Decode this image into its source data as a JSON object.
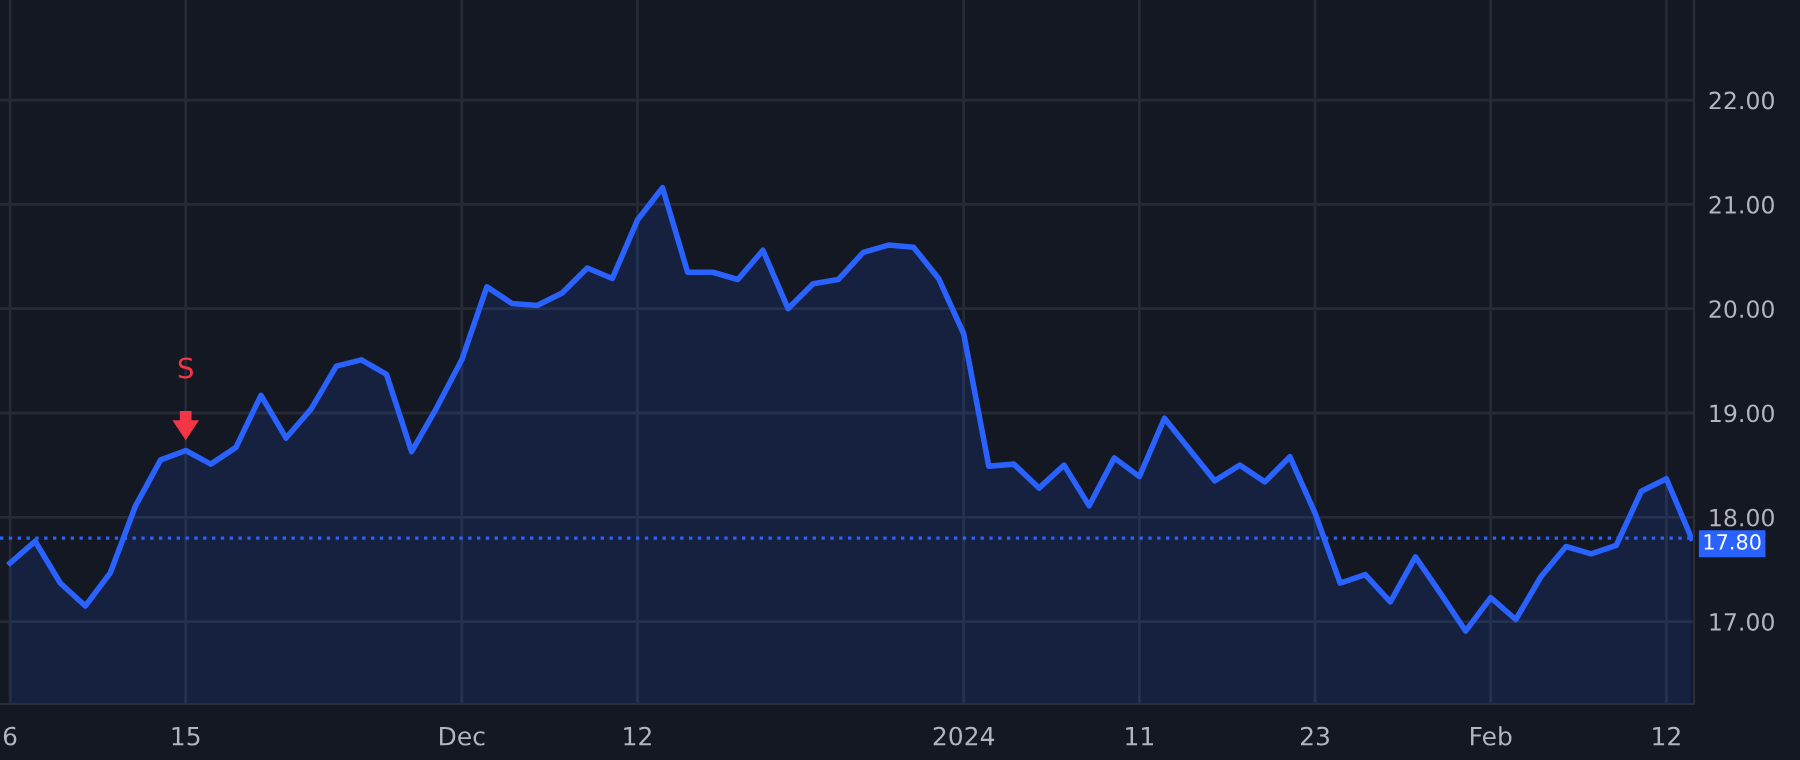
{
  "chart_data": {
    "type": "area",
    "categories": [
      "6",
      null,
      null,
      null,
      null,
      null,
      null,
      "15",
      null,
      null,
      null,
      null,
      null,
      null,
      null,
      null,
      null,
      null,
      "Dec",
      null,
      null,
      null,
      null,
      null,
      null,
      "12",
      null,
      null,
      null,
      null,
      null,
      null,
      null,
      null,
      null,
      null,
      null,
      null,
      "2024",
      null,
      null,
      null,
      null,
      null,
      null,
      "11",
      null,
      null,
      null,
      null,
      null,
      null,
      "23",
      null,
      null,
      null,
      null,
      null,
      null,
      "Feb",
      null,
      null,
      null,
      null,
      null,
      null,
      "12",
      null
    ],
    "series": [
      {
        "color": "#2962ff",
        "values": [
          17.56,
          17.77,
          17.37,
          17.15,
          17.47,
          18.11,
          18.55,
          18.64,
          18.51,
          18.67,
          19.17,
          18.76,
          19.04,
          19.45,
          19.51,
          19.37,
          18.63,
          19.05,
          19.51,
          20.21,
          20.05,
          20.03,
          20.15,
          20.39,
          20.29,
          20.85,
          21.16,
          20.35,
          20.35,
          20.28,
          20.56,
          20.0,
          20.24,
          20.28,
          20.54,
          20.61,
          20.59,
          20.29,
          19.76,
          18.49,
          18.51,
          18.28,
          18.5,
          18.11,
          18.57,
          18.39,
          18.95,
          18.65,
          18.35,
          18.5,
          18.34,
          18.58,
          18.04,
          17.37,
          17.45,
          17.19,
          17.62,
          17.27,
          16.91,
          17.23,
          17.02,
          17.43,
          17.72,
          17.65,
          17.73,
          18.25,
          18.37,
          17.8
        ]
      }
    ],
    "ylim": [
      16.21,
      22.96
    ],
    "yticks": [
      {
        "value": 17,
        "label": "17.00"
      },
      {
        "value": 18,
        "label": "18.00"
      },
      {
        "value": 19,
        "label": "19.00"
      },
      {
        "value": 20,
        "label": "20.00"
      },
      {
        "value": 21,
        "label": "21.00"
      },
      {
        "value": 22,
        "label": "22.00"
      }
    ],
    "ref_lines": [
      {
        "axis": "y",
        "value": 17.8,
        "label": "17.80",
        "color": "#2962ff",
        "line_style": "dotted"
      }
    ],
    "annotations": [
      {
        "text": "S",
        "x": "15",
        "y": 18.64
      }
    ],
    "grid": true,
    "legend": false,
    "marker": "none",
    "line_style": "solid"
  }
}
